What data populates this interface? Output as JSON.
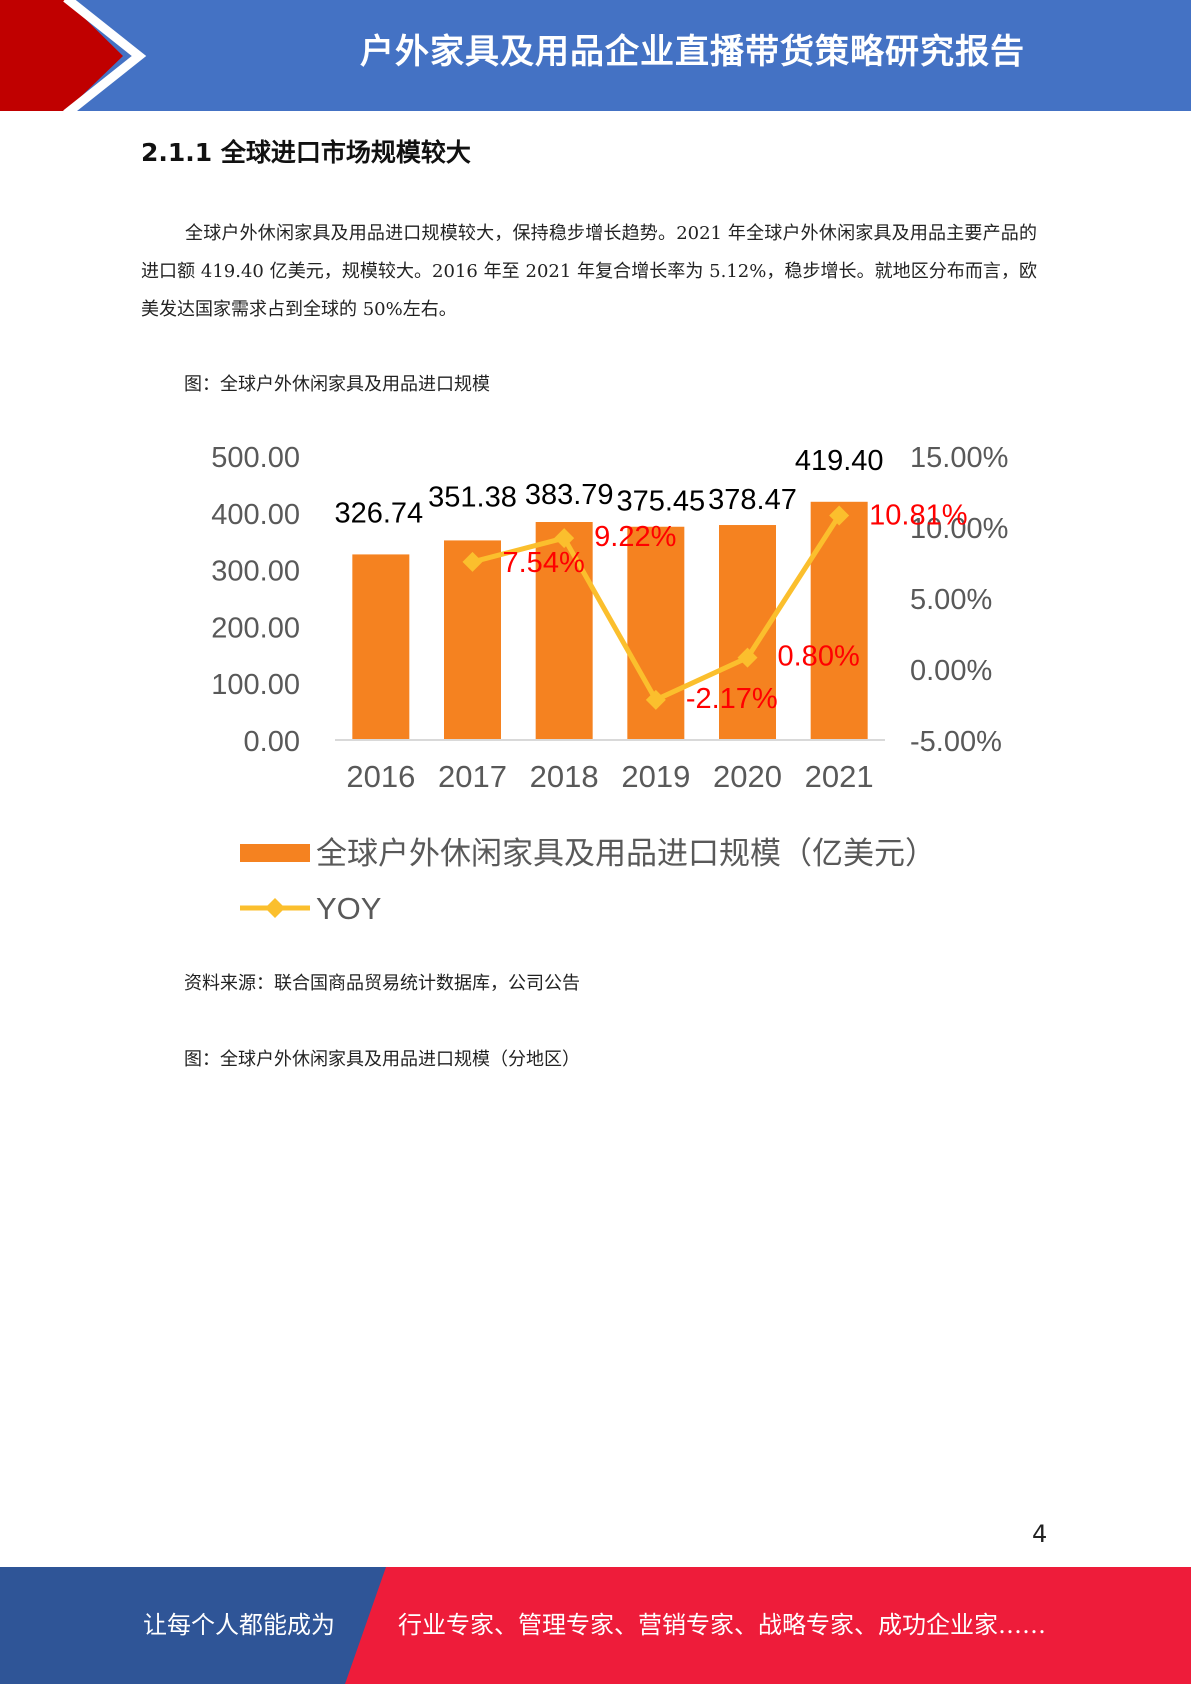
{
  "header": {
    "title": "户外家具及用品企业直播带货策略研究报告"
  },
  "section": {
    "heading": "2.1.1 全球进口市场规模较大"
  },
  "body": {
    "paragraph": "全球户外休闲家具及用品进口规模较大，保持稳步增长趋势。2021 年全球户外休闲家具及用品主要产品的进口额 419.40 亿美元，规模较大。2016 年至 2021 年复合增长率为 5.12%，稳步增长。就地区分布而言，欧美发达国家需求占到全球的 50%左右。"
  },
  "figure1": {
    "caption": "图：全球户外休闲家具及用品进口规模",
    "source": "资料来源：联合国商品贸易统计数据库，公司公告"
  },
  "figure2": {
    "caption": "图：全球户外休闲家具及用品进口规模（分地区）"
  },
  "chart_data": {
    "type": "bar",
    "categories": [
      "2016",
      "2017",
      "2018",
      "2019",
      "2020",
      "2021"
    ],
    "series": [
      {
        "name": "全球户外休闲家具及用品进口规模（亿美元）",
        "type": "bar",
        "axis": "left",
        "values": [
          326.74,
          351.38,
          383.79,
          375.45,
          378.47,
          419.4
        ],
        "labels": [
          "326.74",
          "351.38",
          "383.79",
          "375.45",
          "378.47",
          "419.40"
        ],
        "color": "#f58220"
      },
      {
        "name": "YOY",
        "type": "line",
        "axis": "right",
        "values": [
          null,
          7.54,
          9.22,
          -2.17,
          0.8,
          10.81
        ],
        "labels": [
          "",
          "7.54%",
          "9.22%",
          "-2.17%",
          "0.80%",
          "10.81%"
        ],
        "color": "#fbbf2d",
        "label_color": "#ff0000"
      }
    ],
    "left_axis": {
      "ylim": [
        0,
        500
      ],
      "ticks": [
        "0.00",
        "100.00",
        "200.00",
        "300.00",
        "400.00",
        "500.00"
      ]
    },
    "right_axis": {
      "ylim": [
        -5,
        15
      ],
      "ticks": [
        "-5.00%",
        "0.00%",
        "5.00%",
        "10.00%",
        "15.00%"
      ]
    },
    "legend_position": "bottom",
    "grid": false
  },
  "page": {
    "number": "4"
  },
  "footer": {
    "left_text": "让每个人都能成为",
    "right_text": "行业专家、管理专家、营销专家、战略专家、成功企业家……"
  },
  "colors": {
    "header_blue": "#4472c4",
    "header_red": "#c00000",
    "footer_blue": "#2f5597",
    "footer_red": "#ee1c3a"
  }
}
